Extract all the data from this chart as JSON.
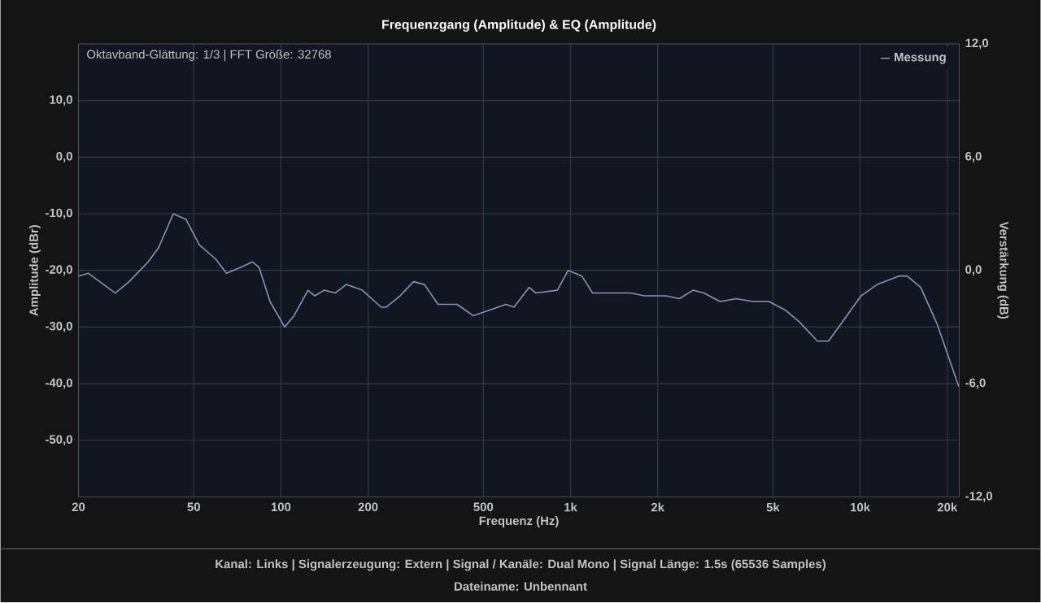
{
  "chart_data": {
    "type": "line",
    "title": "Frequenzgang (Amplitude) & EQ (Amplitude)",
    "xlabel": "Frequenz (Hz)",
    "ylabel": "Amplitude (dBr)",
    "y2label": "Verstärkung (dB)",
    "annotations": [
      "Oktavband-Glättung: 1/3 | FFT Größe: 32768",
      "Kanal: Links  |  Signalerzeugung: Extern   |  Signal / Kanäle: Dual Mono  |  Signal Länge: 1.5s (65536 Samples)",
      "Dateiname: Unbennant"
    ],
    "log": "x",
    "grid": true,
    "legend": "top right",
    "marker": "none",
    "line_style": "solid",
    "xlim": [
      20,
      22000
    ],
    "ylim": [
      -60,
      20
    ],
    "y2lim": [
      -12,
      12
    ],
    "xticks": [
      20,
      50,
      100,
      200,
      500,
      {
        "value": 1000,
        "label": "1k"
      },
      {
        "value": 2000,
        "label": "2k"
      },
      {
        "value": 5000,
        "label": "5k"
      },
      {
        "value": 10000,
        "label": "10k"
      },
      {
        "value": 20000,
        "label": "20k"
      }
    ],
    "yticks": [
      {
        "value": -50,
        "label": "-50,0"
      },
      {
        "value": -40,
        "label": "-40,0"
      },
      {
        "value": -30,
        "label": "-30,0"
      },
      {
        "value": -20,
        "label": "-20,0"
      },
      {
        "value": -10,
        "label": "-10,0"
      },
      {
        "value": 0,
        "label": "0,0"
      },
      {
        "value": 10,
        "label": "10,0"
      }
    ],
    "y2ticks": [
      {
        "value": -12,
        "label": "-12,0"
      },
      {
        "value": -6,
        "label": "-6,0"
      },
      {
        "value": 0,
        "label": "0,0"
      },
      {
        "value": 6,
        "label": "6,0"
      },
      {
        "value": 12,
        "label": "12,0"
      }
    ],
    "series": [
      {
        "name": "Messung",
        "color": "#8a93b5",
        "x": [
          20,
          21.6,
          26.8,
          29.9,
          34.8,
          37.8,
          42.5,
          47,
          52.3,
          59.5,
          64.9,
          72.3,
          79.8,
          84.1,
          91.7,
          103,
          111,
          124,
          131,
          141,
          154,
          168,
          191,
          222,
          231,
          258,
          287,
          313,
          349,
          406,
          461,
          526,
          598,
          638,
          720,
          759,
          900,
          982,
          1094,
          1192,
          1612,
          1797,
          2134,
          2377,
          2650,
          2886,
          3283,
          3735,
          4256,
          4842,
          5508,
          6139,
          7129,
          7781,
          8852,
          10070,
          11460,
          13610,
          14530,
          16190,
          18460,
          21900
        ],
        "values": [
          -21,
          -20.5,
          -24,
          -22,
          -18.5,
          -16,
          -10,
          -11,
          -15.5,
          -18,
          -20.5,
          -19.5,
          -18.5,
          -19.5,
          -25.5,
          -30,
          -28,
          -23.5,
          -24.5,
          -23.5,
          -24,
          -22.5,
          -23.5,
          -26.5,
          -26.5,
          -24.5,
          -22,
          -22.5,
          -26,
          -26,
          -28,
          -27,
          -26,
          -26.5,
          -23,
          -24,
          -23.5,
          -20,
          -21,
          -24,
          -24,
          -24.5,
          -24.5,
          -25,
          -23.5,
          -24,
          -25.5,
          -25,
          -25.5,
          -25.5,
          -27,
          -29,
          -32.5,
          -32.5,
          -28.5,
          -24.5,
          -22.5,
          -21,
          -21,
          -23,
          -29.5,
          -40.5
        ]
      }
    ]
  }
}
